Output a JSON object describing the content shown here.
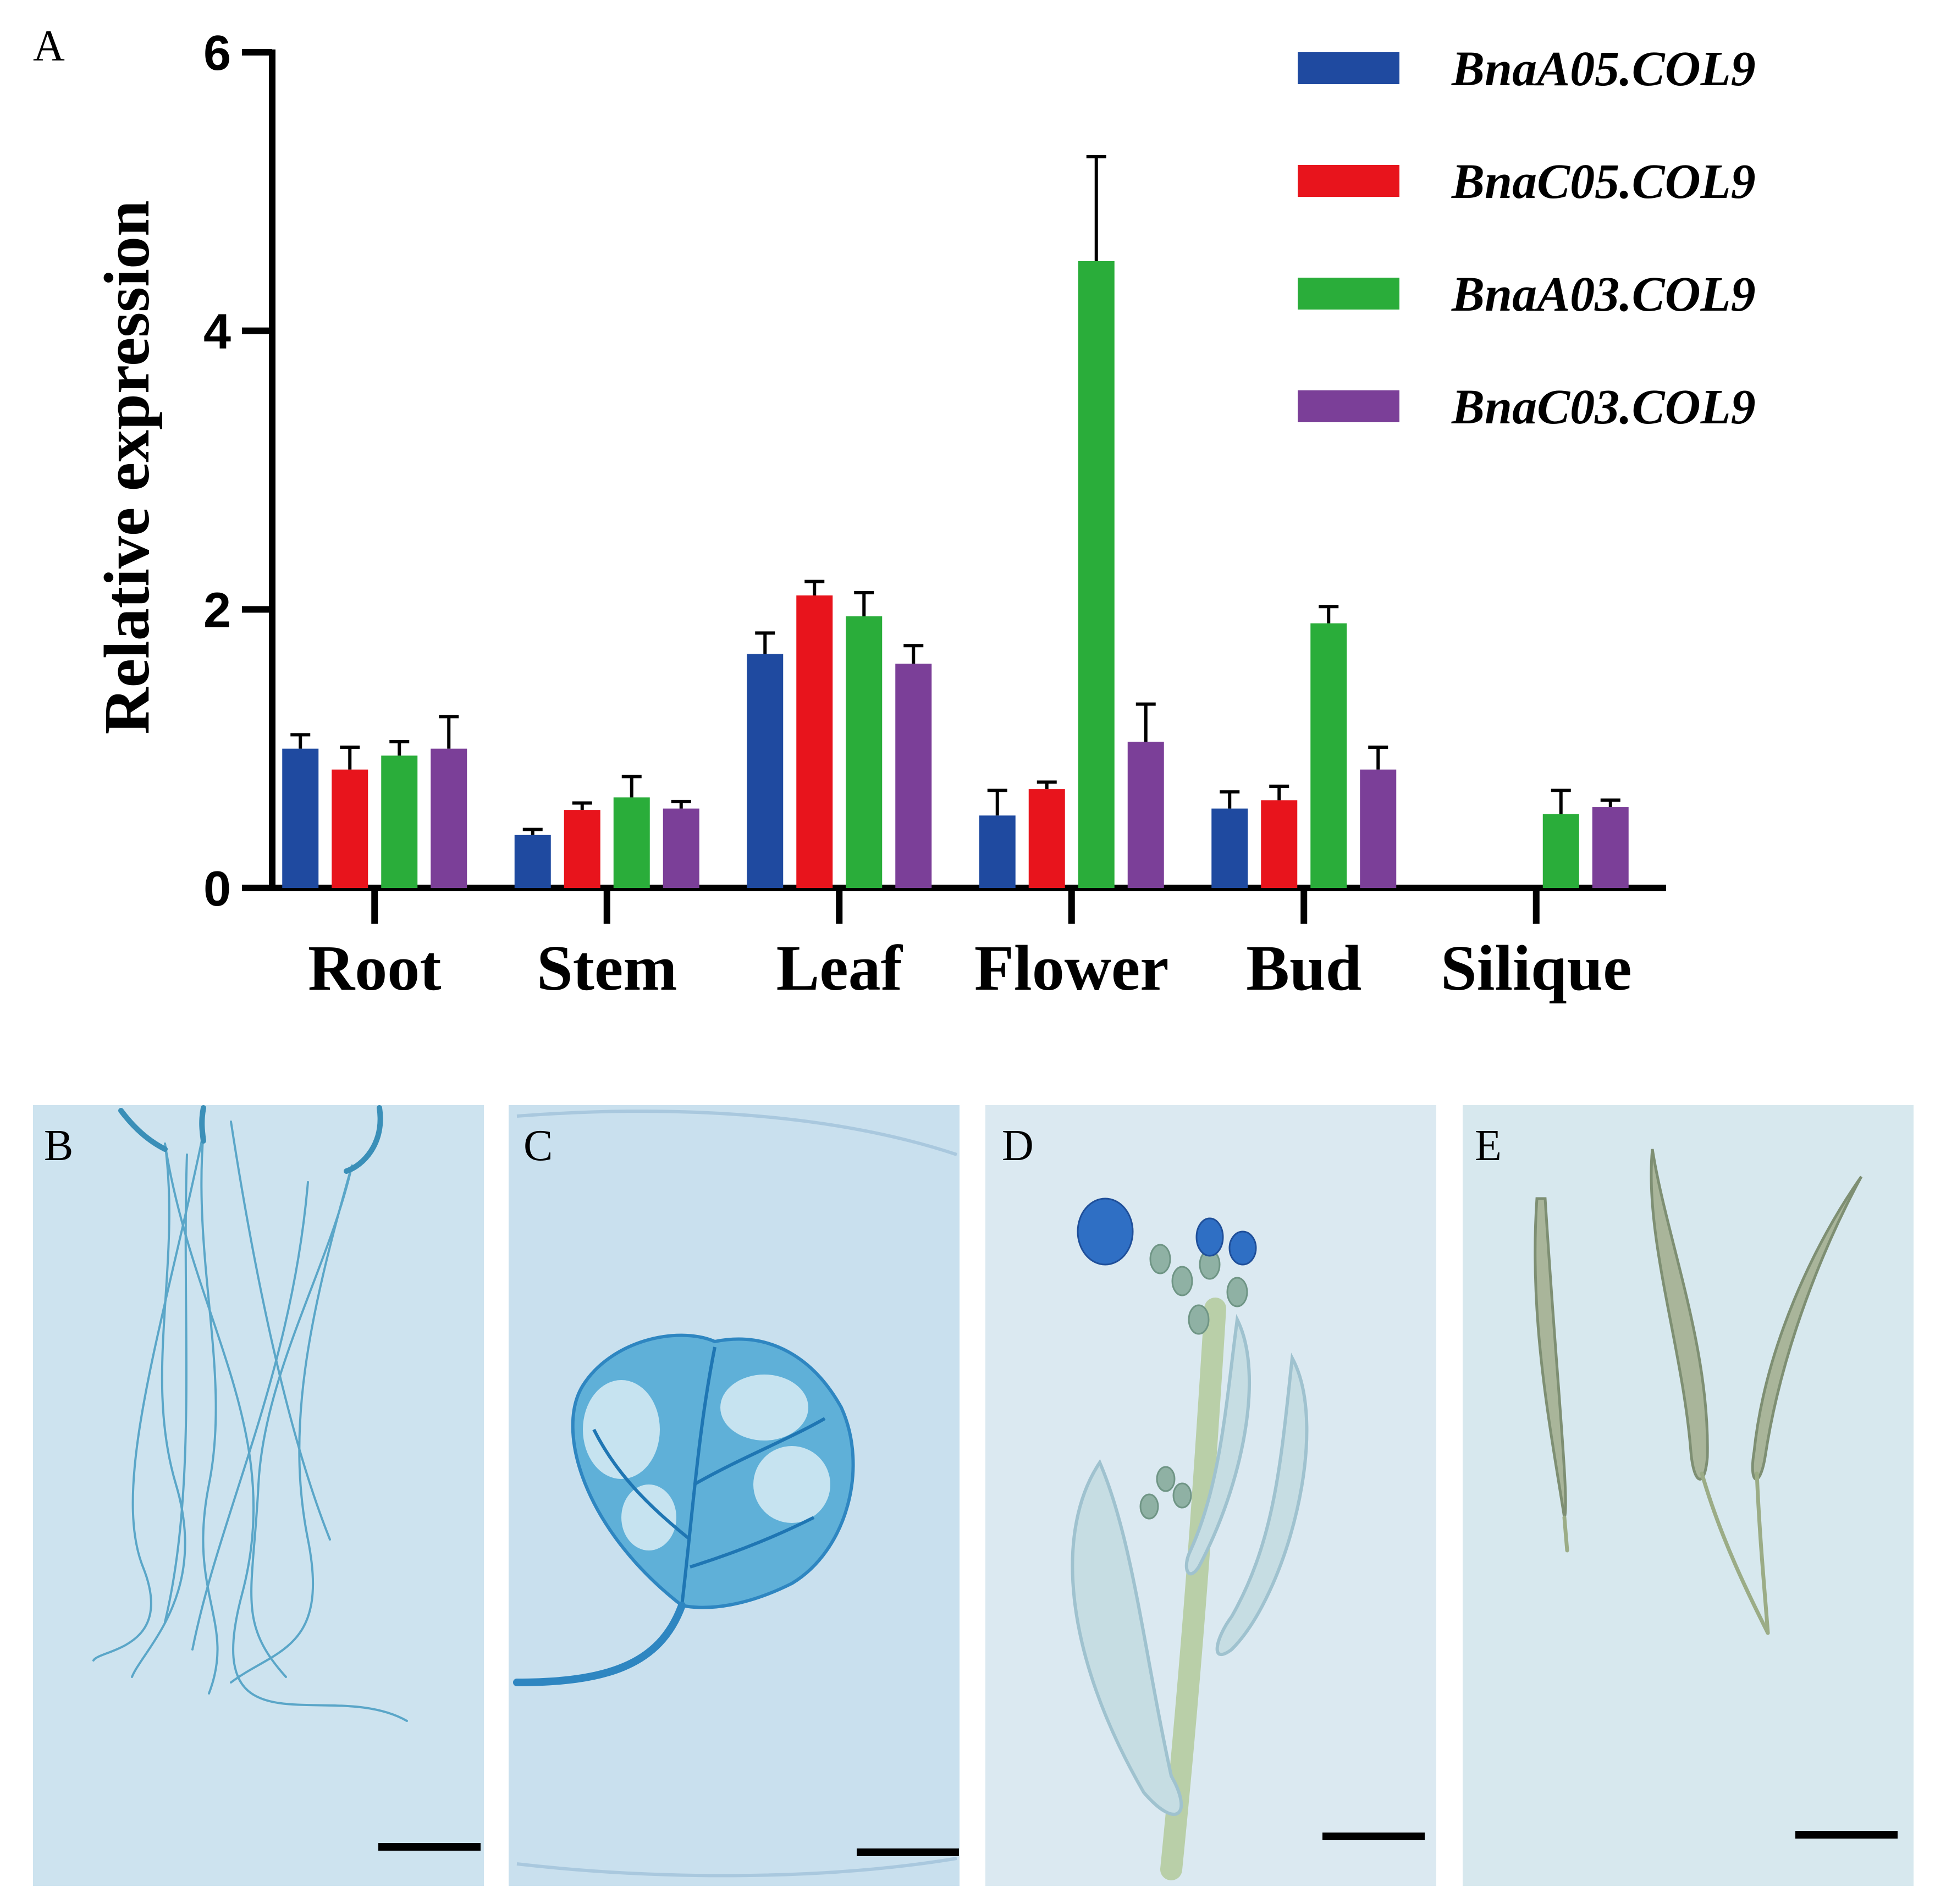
{
  "panels": {
    "a": "A",
    "b": "B",
    "c": "C",
    "d": "D",
    "e": "E"
  },
  "chart_data": {
    "type": "bar",
    "categories": [
      "Root",
      "Stem",
      "Leaf",
      "Flower",
      "Bud",
      "Silique"
    ],
    "ylabel": "Relative expression",
    "xlabel": "",
    "ylim": [
      0,
      6
    ],
    "yticks": [
      0,
      2,
      4,
      6
    ],
    "legend_position": "top-right",
    "grid": false,
    "series": [
      {
        "name": "BnaA05.COL9",
        "color": "#1f4aa0",
        "values": [
          1.0,
          0.38,
          1.68,
          0.52,
          0.57,
          0
        ],
        "errors": [
          0.1,
          0.04,
          0.15,
          0.18,
          0.12,
          0
        ]
      },
      {
        "name": "BnaC05.COL9",
        "color": "#e8141c",
        "values": [
          0.85,
          0.56,
          2.1,
          0.71,
          0.63,
          0
        ],
        "errors": [
          0.16,
          0.05,
          0.1,
          0.05,
          0.1,
          0
        ]
      },
      {
        "name": "BnaA03.COL9",
        "color": "#2aad3a",
        "values": [
          0.95,
          0.65,
          1.95,
          4.5,
          1.9,
          0.53
        ],
        "errors": [
          0.1,
          0.15,
          0.17,
          0.75,
          0.12,
          0.17
        ]
      },
      {
        "name": "BnaC03.COL9",
        "color": "#7b3f98",
        "values": [
          1.0,
          0.57,
          1.61,
          1.05,
          0.85,
          0.58
        ],
        "errors": [
          0.23,
          0.05,
          0.13,
          0.27,
          0.16,
          0.05
        ]
      }
    ]
  }
}
